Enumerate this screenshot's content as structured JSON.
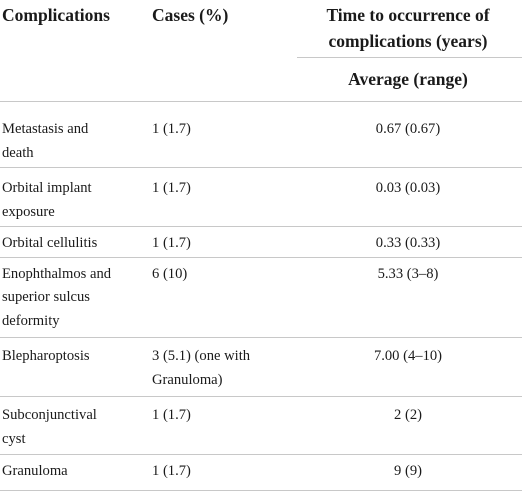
{
  "table": {
    "headers": {
      "col1": "Complications",
      "col2": "Cases (%)",
      "col3_line1": "Time to occurrence of",
      "col3_line2": "complications (years)",
      "col3_sub": "Average (range)"
    },
    "rows": [
      {
        "complication_l1": "Metastasis and",
        "complication_l2": "death",
        "complication_l3": "",
        "cases_l1": "1 (1.7)",
        "cases_l2": "",
        "time": "0.67 (0.67)"
      },
      {
        "complication_l1": "Orbital implant",
        "complication_l2": "exposure",
        "complication_l3": "",
        "cases_l1": "1 (1.7)",
        "cases_l2": "",
        "time": "0.03 (0.03)"
      },
      {
        "complication_l1": "Orbital cellulitis",
        "complication_l2": "",
        "complication_l3": "",
        "cases_l1": "1 (1.7)",
        "cases_l2": "",
        "time": "0.33 (0.33)"
      },
      {
        "complication_l1": "Enophthalmos and",
        "complication_l2": "superior sulcus",
        "complication_l3": "deformity",
        "cases_l1": "6 (10)",
        "cases_l2": "",
        "time": "5.33 (3–8)"
      },
      {
        "complication_l1": "Blepharoptosis",
        "complication_l2": "",
        "complication_l3": "",
        "cases_l1": "3 (5.1) (one with",
        "cases_l2": "Granuloma)",
        "time": "7.00 (4–10)"
      },
      {
        "complication_l1": "Subconjunctival",
        "complication_l2": "cyst",
        "complication_l3": "",
        "cases_l1": "1 (1.7)",
        "cases_l2": "",
        "time": "2 (2)"
      },
      {
        "complication_l1": "Granuloma",
        "complication_l2": "",
        "complication_l3": "",
        "cases_l1": "1 (1.7)",
        "cases_l2": "",
        "time": "9 (9)"
      }
    ]
  }
}
